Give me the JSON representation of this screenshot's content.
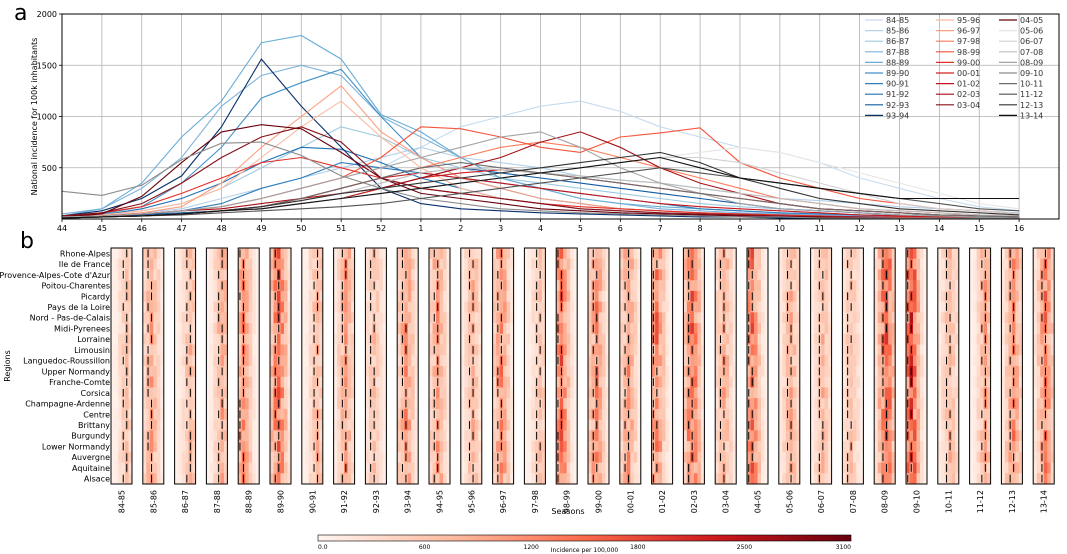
{
  "panel_labels": {
    "a": "a",
    "b": "b"
  },
  "chart_data": [
    {
      "type": "line",
      "panel": "a",
      "ylabel": "National incidence for 100k inhabitants",
      "xlabel": "",
      "ylim": [
        0,
        2000
      ],
      "yticks": [
        500,
        1000,
        1500,
        2000
      ],
      "x_ticklabels": [
        "44",
        "45",
        "46",
        "47",
        "48",
        "49",
        "50",
        "51",
        "52",
        "1",
        "2",
        "3",
        "4",
        "5",
        "6",
        "7",
        "8",
        "9",
        "10",
        "11",
        "12",
        "13",
        "14",
        "15",
        "16"
      ],
      "grid": true,
      "legend_placement": "top-right",
      "series_order": [
        "84-85",
        "85-86",
        "86-87",
        "87-88",
        "88-89",
        "89-90",
        "90-91",
        "91-92",
        "92-93",
        "93-94",
        "95-96",
        "96-97",
        "97-98",
        "98-99",
        "99-00",
        "00-01",
        "01-02",
        "02-03",
        "03-04",
        "04-05",
        "05-06",
        "06-07",
        "07-08",
        "08-09",
        "09-10",
        "10-11",
        "11-12",
        "12-13",
        "13-14"
      ],
      "series": [
        {
          "name": "84-85",
          "color": "#c6dbef",
          "values": [
            20,
            30,
            50,
            80,
            120,
            200,
            300,
            400,
            500,
            700,
            900,
            1000,
            1100,
            1150,
            1050,
            900,
            800,
            700,
            650,
            550,
            400,
            300,
            200,
            120,
            80
          ]
        },
        {
          "name": "85-86",
          "color": "#b3d1ea",
          "values": [
            30,
            40,
            60,
            100,
            200,
            300,
            400,
            500,
            600,
            700,
            600,
            550,
            500,
            420,
            380,
            350,
            300,
            250,
            200,
            180,
            150,
            120,
            100,
            80,
            60
          ]
        },
        {
          "name": "86-87",
          "color": "#9ecae1",
          "values": [
            20,
            40,
            80,
            150,
            300,
            500,
            700,
            900,
            800,
            600,
            500,
            400,
            350,
            300,
            250,
            200,
            150,
            120,
            100,
            80,
            60,
            40,
            30,
            20,
            20
          ]
        },
        {
          "name": "87-88",
          "color": "#7fb3da",
          "values": [
            50,
            100,
            300,
            600,
            1100,
            1400,
            1500,
            1400,
            1000,
            800,
            600,
            400,
            300,
            200,
            150,
            100,
            80,
            60,
            50,
            40,
            30,
            20,
            20,
            10,
            10
          ]
        },
        {
          "name": "88-89",
          "color": "#6aaed6",
          "values": [
            30,
            100,
            350,
            800,
            1150,
            1720,
            1790,
            1560,
            1020,
            850,
            600,
            400,
            300,
            200,
            150,
            120,
            100,
            80,
            60,
            50,
            40,
            30,
            20,
            20,
            10
          ]
        },
        {
          "name": "89-90",
          "color": "#4292c6",
          "values": [
            20,
            50,
            120,
            350,
            700,
            1180,
            1330,
            1460,
            1000,
            600,
            400,
            300,
            200,
            150,
            100,
            80,
            60,
            50,
            40,
            30,
            20,
            20,
            10,
            10,
            10
          ]
        },
        {
          "name": "90-91",
          "color": "#2f7ebc",
          "values": [
            10,
            20,
            40,
            80,
            150,
            300,
            400,
            550,
            500,
            450,
            400,
            350,
            300,
            250,
            200,
            150,
            100,
            80,
            60,
            50,
            40,
            30,
            20,
            20,
            10
          ]
        },
        {
          "name": "91-92",
          "color": "#2171b5",
          "values": [
            20,
            40,
            100,
            200,
            350,
            550,
            700,
            680,
            550,
            400,
            300,
            200,
            150,
            100,
            80,
            60,
            40,
            30,
            20,
            20,
            10,
            10,
            10,
            10,
            10
          ]
        },
        {
          "name": "92-93",
          "color": "#105ba4",
          "values": [
            10,
            20,
            40,
            60,
            80,
            100,
            150,
            200,
            300,
            400,
            500,
            450,
            400,
            350,
            300,
            250,
            200,
            150,
            100,
            80,
            60,
            40,
            30,
            20,
            10
          ]
        },
        {
          "name": "93-94",
          "color": "#08306b",
          "values": [
            30,
            80,
            200,
            420,
            900,
            1560,
            1100,
            700,
            300,
            150,
            100,
            80,
            60,
            50,
            40,
            30,
            20,
            20,
            10,
            10,
            10,
            10,
            10,
            10,
            10
          ]
        },
        {
          "name": "95-96",
          "color": "#fcbba1",
          "values": [
            20,
            40,
            80,
            150,
            300,
            600,
            900,
            1150,
            800,
            500,
            300,
            200,
            150,
            100,
            80,
            60,
            40,
            30,
            20,
            20,
            10,
            10,
            10,
            10,
            10
          ]
        },
        {
          "name": "96-97",
          "color": "#fc9f81",
          "values": [
            10,
            30,
            60,
            120,
            350,
            700,
            1000,
            1300,
            850,
            600,
            400,
            300,
            200,
            150,
            100,
            80,
            60,
            40,
            30,
            20,
            20,
            10,
            10,
            10,
            10
          ]
        },
        {
          "name": "97-98",
          "color": "#fb7d5d",
          "values": [
            10,
            20,
            30,
            50,
            80,
            120,
            200,
            300,
            400,
            500,
            600,
            700,
            750,
            700,
            600,
            500,
            400,
            300,
            200,
            150,
            100,
            80,
            60,
            40,
            30
          ]
        },
        {
          "name": "98-99",
          "color": "#f6553c",
          "values": [
            20,
            30,
            50,
            80,
            120,
            200,
            300,
            400,
            600,
            900,
            880,
            800,
            700,
            650,
            800,
            840,
            890,
            550,
            400,
            300,
            200,
            150,
            100,
            80,
            50
          ]
        },
        {
          "name": "99-00",
          "color": "#e32f27",
          "values": [
            30,
            60,
            120,
            250,
            400,
            550,
            600,
            500,
            400,
            300,
            250,
            200,
            150,
            120,
            100,
            80,
            60,
            50,
            40,
            30,
            20,
            20,
            10,
            10,
            10
          ]
        },
        {
          "name": "00-01",
          "color": "#d42020",
          "values": [
            10,
            20,
            30,
            50,
            80,
            100,
            150,
            200,
            300,
            400,
            450,
            480,
            450,
            400,
            350,
            300,
            250,
            200,
            150,
            100,
            80,
            60,
            40,
            30,
            20
          ]
        },
        {
          "name": "01-02",
          "color": "#c4161c",
          "values": [
            10,
            20,
            30,
            50,
            80,
            120,
            200,
            300,
            400,
            450,
            400,
            350,
            300,
            250,
            200,
            150,
            120,
            100,
            80,
            60,
            40,
            30,
            20,
            20,
            10
          ]
        },
        {
          "name": "02-03",
          "color": "#a50f15",
          "values": [
            20,
            30,
            50,
            80,
            100,
            150,
            200,
            250,
            300,
            400,
            500,
            600,
            750,
            850,
            700,
            500,
            350,
            250,
            150,
            100,
            80,
            60,
            40,
            30,
            20
          ]
        },
        {
          "name": "03-04",
          "color": "#86101a",
          "values": [
            30,
            60,
            150,
            350,
            600,
            800,
            900,
            750,
            400,
            300,
            250,
            200,
            150,
            100,
            80,
            60,
            50,
            40,
            30,
            20,
            20,
            10,
            10,
            10,
            10
          ]
        },
        {
          "name": "04-05",
          "color": "#67000d",
          "values": [
            20,
            50,
            220,
            550,
            850,
            920,
            880,
            650,
            400,
            250,
            200,
            150,
            100,
            80,
            60,
            50,
            40,
            30,
            20,
            20,
            10,
            10,
            10,
            10,
            10
          ]
        },
        {
          "name": "05-06",
          "color": "#e6e6e6",
          "values": [
            10,
            20,
            30,
            50,
            80,
            100,
            150,
            200,
            250,
            300,
            350,
            400,
            450,
            500,
            550,
            600,
            650,
            700,
            650,
            550,
            450,
            350,
            250,
            150,
            100
          ]
        },
        {
          "name": "06-07",
          "color": "#d1d1d1",
          "values": [
            10,
            20,
            30,
            50,
            80,
            100,
            150,
            200,
            250,
            300,
            350,
            400,
            450,
            500,
            550,
            600,
            600,
            550,
            450,
            350,
            250,
            150,
            100,
            80,
            50
          ]
        },
        {
          "name": "07-08",
          "color": "#bdbdbd",
          "values": [
            10,
            20,
            30,
            50,
            80,
            120,
            180,
            250,
            350,
            450,
            500,
            480,
            450,
            420,
            380,
            350,
            300,
            250,
            200,
            150,
            100,
            80,
            60,
            40,
            30
          ]
        },
        {
          "name": "08-09",
          "color": "#a3a3a3",
          "values": [
            20,
            30,
            50,
            80,
            120,
            200,
            300,
            400,
            500,
            600,
            700,
            800,
            850,
            700,
            500,
            350,
            250,
            150,
            100,
            80,
            60,
            40,
            30,
            20,
            10
          ]
        },
        {
          "name": "09-10",
          "color": "#8c8c8c",
          "values": [
            270,
            230,
            330,
            580,
            740,
            750,
            620,
            420,
            300,
            200,
            150,
            100,
            80,
            60,
            50,
            40,
            30,
            20,
            20,
            10,
            10,
            10,
            10,
            10,
            10
          ]
        },
        {
          "name": "10-11",
          "color": "#6e6e6e",
          "values": [
            10,
            20,
            30,
            50,
            80,
            120,
            200,
            300,
            400,
            500,
            550,
            500,
            450,
            400,
            350,
            300,
            250,
            200,
            150,
            100,
            80,
            60,
            40,
            30,
            20
          ]
        },
        {
          "name": "11-12",
          "color": "#525252",
          "values": [
            10,
            20,
            30,
            40,
            60,
            80,
            100,
            120,
            150,
            200,
            250,
            300,
            350,
            400,
            450,
            500,
            450,
            400,
            350,
            300,
            250,
            200,
            150,
            100,
            80
          ]
        },
        {
          "name": "12-13",
          "color": "#333333",
          "values": [
            10,
            20,
            30,
            50,
            80,
            120,
            180,
            250,
            300,
            350,
            400,
            450,
            500,
            550,
            600,
            650,
            550,
            400,
            300,
            200,
            150,
            100,
            80,
            60,
            40
          ]
        },
        {
          "name": "13-14",
          "color": "#111111",
          "values": [
            10,
            20,
            30,
            50,
            80,
            100,
            150,
            200,
            250,
            300,
            350,
            400,
            450,
            500,
            550,
            600,
            500,
            400,
            350,
            300,
            250,
            200,
            200,
            200,
            200
          ]
        }
      ]
    },
    {
      "type": "heatmap",
      "panel": "b",
      "ylabel": "Regions",
      "xlabel": "Seasons",
      "regions": [
        "Rhone-Alpes",
        "Ile de France",
        "Provence-Alpes-Cote d'Azur",
        "Poitou-Charentes",
        "Picardy",
        "Pays de la Loire",
        "Nord - Pas-de-Calais",
        "Midi-Pyrenees",
        "Lorraine",
        "Limousin",
        "Languedoc-Roussillon",
        "Upper Normandy",
        "Franche-Comte",
        "Corsica",
        "Champagne-Ardenne",
        "Centre",
        "Brittany",
        "Burgundy",
        "Lower Normandy",
        "Auvergne",
        "Aquitaine",
        "Alsace"
      ],
      "seasons": [
        "84-85",
        "85-86",
        "86-87",
        "87-88",
        "88-89",
        "89-90",
        "90-91",
        "91-92",
        "92-93",
        "93-94",
        "94-95",
        "95-96",
        "96-97",
        "97-98",
        "98-99",
        "99-00",
        "00-01",
        "01-02",
        "02-03",
        "03-04",
        "04-05",
        "05-06",
        "06-07",
        "07-08",
        "08-09",
        "09-10",
        "10-11",
        "11-12",
        "12-13",
        "13-14"
      ],
      "season_intensity": [
        0.25,
        0.35,
        0.3,
        0.35,
        0.45,
        0.6,
        0.3,
        0.4,
        0.25,
        0.45,
        0.4,
        0.3,
        0.45,
        0.25,
        0.55,
        0.45,
        0.4,
        0.5,
        0.6,
        0.35,
        0.55,
        0.35,
        0.3,
        0.25,
        0.65,
        0.7,
        0.3,
        0.35,
        0.45,
        0.5
      ],
      "colorbar": {
        "label": "Incidence per 100,000",
        "ticks": [
          "0.0",
          "600",
          "1200",
          "1800",
          "2500",
          "3100"
        ],
        "range": [
          0,
          3100
        ],
        "colors": [
          "#fff5f0",
          "#fcbba1",
          "#fb6a4a",
          "#cb181d",
          "#67000d"
        ]
      }
    }
  ]
}
